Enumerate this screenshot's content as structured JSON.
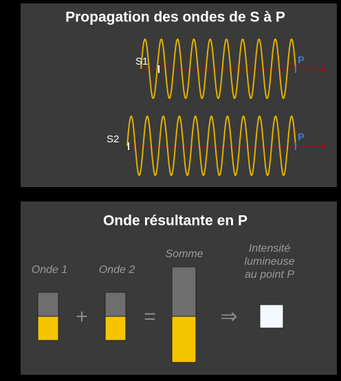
{
  "top_panel": {
    "title": "Propagation des ondes de S à P",
    "source1": "S1",
    "point1": "P",
    "source2": "S2",
    "point2": "P"
  },
  "bottom_panel": {
    "title": "Onde résultante en P",
    "wave1": "Onde 1",
    "wave2": "Onde 2",
    "sum": "Somme",
    "intensity": [
      "Intensité",
      "lumineuse",
      "au point P"
    ],
    "plus": "+",
    "equals": "=",
    "implies": "⇒"
  }
}
